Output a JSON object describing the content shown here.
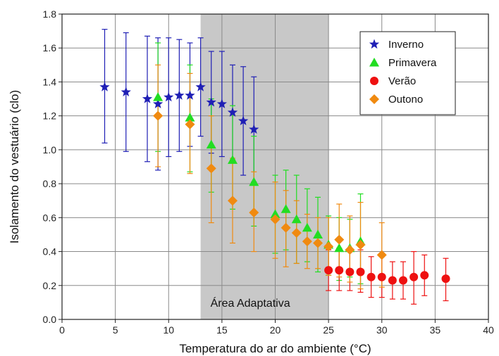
{
  "chart_data": {
    "type": "scatter",
    "title": "",
    "xlabel": "Temperatura do ar do ambiente (°C)",
    "ylabel": "Isolamento do vestuário (clo)",
    "xlim": [
      0,
      40
    ],
    "ylim": [
      0,
      1.8
    ],
    "x_ticks": [
      0,
      5,
      10,
      15,
      20,
      25,
      30,
      35,
      40
    ],
    "y_ticks": [
      "0.0",
      "0.2",
      "0.4",
      "0.6",
      "0.8",
      "1.0",
      "1.2",
      "1.4",
      "1.6",
      "1.8"
    ],
    "grid": true,
    "legend_position": "top-right",
    "shaded_region": {
      "x_start": 13,
      "x_end": 25,
      "label": "Área Adaptativa",
      "color": "#c8c8c8"
    },
    "series": [
      {
        "name": "Inverno",
        "marker": "star",
        "color": "#1f1fb5",
        "points": [
          {
            "x": 4,
            "y": 1.37,
            "low": 1.04,
            "high": 1.71
          },
          {
            "x": 6,
            "y": 1.34,
            "low": 0.99,
            "high": 1.69
          },
          {
            "x": 8,
            "y": 1.3,
            "low": 0.93,
            "high": 1.67
          },
          {
            "x": 9,
            "y": 1.27,
            "low": 0.88,
            "high": 1.66
          },
          {
            "x": 10,
            "y": 1.31,
            "low": 0.96,
            "high": 1.66
          },
          {
            "x": 11,
            "y": 1.32,
            "low": 0.99,
            "high": 1.65
          },
          {
            "x": 12,
            "y": 1.32,
            "low": 1.02,
            "high": 1.63
          },
          {
            "x": 13,
            "y": 1.37,
            "low": 1.08,
            "high": 1.66
          },
          {
            "x": 14,
            "y": 1.28,
            "low": 0.98,
            "high": 1.58
          },
          {
            "x": 15,
            "y": 1.27,
            "low": 0.96,
            "high": 1.58
          },
          {
            "x": 16,
            "y": 1.22,
            "low": 0.94,
            "high": 1.5
          },
          {
            "x": 17,
            "y": 1.17,
            "low": 0.85,
            "high": 1.49
          },
          {
            "x": 18,
            "y": 1.12,
            "low": 0.81,
            "high": 1.43
          }
        ]
      },
      {
        "name": "Primavera",
        "marker": "triangle",
        "color": "#22dd22",
        "points": [
          {
            "x": 9,
            "y": 1.31,
            "low": 0.99,
            "high": 1.63
          },
          {
            "x": 12,
            "y": 1.19,
            "low": 0.87,
            "high": 1.5
          },
          {
            "x": 14,
            "y": 1.03,
            "low": 0.75,
            "high": 1.3
          },
          {
            "x": 16,
            "y": 0.94,
            "low": 0.65,
            "high": 1.26
          },
          {
            "x": 18,
            "y": 0.81,
            "low": 0.55,
            "high": 1.08
          },
          {
            "x": 20,
            "y": 0.62,
            "low": 0.39,
            "high": 0.85
          },
          {
            "x": 21,
            "y": 0.65,
            "low": 0.41,
            "high": 0.88
          },
          {
            "x": 22,
            "y": 0.59,
            "low": 0.33,
            "high": 0.85
          },
          {
            "x": 23,
            "y": 0.54,
            "low": 0.34,
            "high": 0.77
          },
          {
            "x": 24,
            "y": 0.5,
            "low": 0.28,
            "high": 0.72
          },
          {
            "x": 25,
            "y": 0.44,
            "low": 0.26,
            "high": 0.61
          },
          {
            "x": 26,
            "y": 0.42,
            "low": 0.23,
            "high": 0.6
          },
          {
            "x": 27,
            "y": 0.42,
            "low": 0.25,
            "high": 0.59
          },
          {
            "x": 28,
            "y": 0.46,
            "low": 0.21,
            "high": 0.74
          }
        ]
      },
      {
        "name": "Verão",
        "marker": "circle",
        "color": "#ee1111",
        "points": [
          {
            "x": 25,
            "y": 0.29,
            "low": 0.17,
            "high": 0.41
          },
          {
            "x": 26,
            "y": 0.29,
            "low": 0.17,
            "high": 0.42
          },
          {
            "x": 27,
            "y": 0.28,
            "low": 0.17,
            "high": 0.4
          },
          {
            "x": 28,
            "y": 0.28,
            "low": 0.16,
            "high": 0.41
          },
          {
            "x": 29,
            "y": 0.25,
            "low": 0.13,
            "high": 0.37
          },
          {
            "x": 30,
            "y": 0.25,
            "low": 0.13,
            "high": 0.37
          },
          {
            "x": 31,
            "y": 0.23,
            "low": 0.12,
            "high": 0.34
          },
          {
            "x": 32,
            "y": 0.23,
            "low": 0.12,
            "high": 0.34
          },
          {
            "x": 33,
            "y": 0.25,
            "low": 0.09,
            "high": 0.4
          },
          {
            "x": 34,
            "y": 0.26,
            "low": 0.14,
            "high": 0.38
          },
          {
            "x": 36,
            "y": 0.24,
            "low": 0.11,
            "high": 0.36
          }
        ]
      },
      {
        "name": "Outono",
        "marker": "diamond",
        "color": "#f08a10",
        "points": [
          {
            "x": 9,
            "y": 1.2,
            "low": 0.9,
            "high": 1.5
          },
          {
            "x": 12,
            "y": 1.15,
            "low": 0.86,
            "high": 1.45
          },
          {
            "x": 14,
            "y": 0.89,
            "low": 0.57,
            "high": 1.2
          },
          {
            "x": 16,
            "y": 0.7,
            "low": 0.45,
            "high": 0.95
          },
          {
            "x": 18,
            "y": 0.63,
            "low": 0.4,
            "high": 0.87
          },
          {
            "x": 20,
            "y": 0.59,
            "low": 0.36,
            "high": 0.81
          },
          {
            "x": 21,
            "y": 0.54,
            "low": 0.31,
            "high": 0.76
          },
          {
            "x": 22,
            "y": 0.51,
            "low": 0.33,
            "high": 0.7
          },
          {
            "x": 23,
            "y": 0.46,
            "low": 0.3,
            "high": 0.62
          },
          {
            "x": 24,
            "y": 0.45,
            "low": 0.3,
            "high": 0.6
          },
          {
            "x": 25,
            "y": 0.43,
            "low": 0.26,
            "high": 0.6
          },
          {
            "x": 26,
            "y": 0.47,
            "low": 0.25,
            "high": 0.68
          },
          {
            "x": 27,
            "y": 0.41,
            "low": 0.22,
            "high": 0.61
          },
          {
            "x": 28,
            "y": 0.44,
            "low": 0.18,
            "high": 0.69
          },
          {
            "x": 30,
            "y": 0.38,
            "low": 0.19,
            "high": 0.57
          }
        ]
      }
    ]
  }
}
